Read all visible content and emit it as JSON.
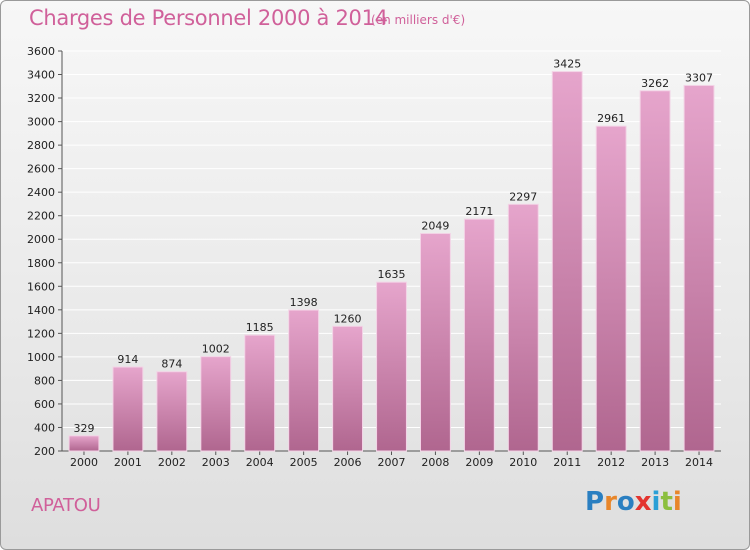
{
  "title": "Charges de Personnel 2000 à 2014",
  "subtitle": "(en milliers d'€)",
  "place": "APATOU",
  "logo": {
    "letters": [
      "P",
      "r",
      "o",
      "x",
      "i",
      "t",
      "i"
    ],
    "colors": [
      "#2a7fc1",
      "#e8862a",
      "#2a7fc1",
      "#e3342f",
      "#2a9fd6",
      "#8cbf3f",
      "#e8862a"
    ]
  },
  "colors": {
    "accent": "#d0609a",
    "bar_top": "#e6a5cc",
    "bar_bottom": "#b0668f",
    "grid": "#ffffff"
  },
  "chart_data": {
    "type": "bar",
    "title": "Charges de Personnel 2000 à 2014",
    "categories": [
      "2000",
      "2001",
      "2002",
      "2003",
      "2004",
      "2005",
      "2006",
      "2007",
      "2008",
      "2009",
      "2010",
      "2011",
      "2012",
      "2013",
      "2014"
    ],
    "values": [
      329,
      914,
      874,
      1002,
      1185,
      1398,
      1260,
      1635,
      2049,
      2171,
      2297,
      3425,
      2961,
      3262,
      3307
    ],
    "ylim": [
      200,
      3600
    ],
    "yticks": [
      200,
      400,
      600,
      800,
      1000,
      1200,
      1400,
      1600,
      1800,
      2000,
      2200,
      2400,
      2600,
      2800,
      3000,
      3200,
      3400,
      3600
    ],
    "grid": true,
    "xlabel": "",
    "ylabel": ""
  }
}
